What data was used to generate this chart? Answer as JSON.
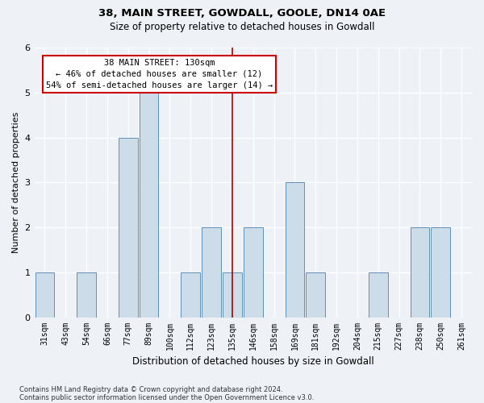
{
  "title1": "38, MAIN STREET, GOWDALL, GOOLE, DN14 0AE",
  "title2": "Size of property relative to detached houses in Gowdall",
  "xlabel": "Distribution of detached houses by size in Gowdall",
  "ylabel": "Number of detached properties",
  "categories": [
    "31sqm",
    "43sqm",
    "54sqm",
    "66sqm",
    "77sqm",
    "89sqm",
    "100sqm",
    "112sqm",
    "123sqm",
    "135sqm",
    "146sqm",
    "158sqm",
    "169sqm",
    "181sqm",
    "192sqm",
    "204sqm",
    "215sqm",
    "227sqm",
    "238sqm",
    "250sqm",
    "261sqm"
  ],
  "values": [
    1,
    0,
    1,
    0,
    4,
    5,
    0,
    1,
    2,
    1,
    2,
    0,
    3,
    1,
    0,
    0,
    1,
    0,
    2,
    2,
    0
  ],
  "bar_color": "#ccdce8",
  "bar_edge_color": "#6090b8",
  "vline_x_index": 9,
  "vline_color": "#aa0000",
  "annotation_text": "38 MAIN STREET: 130sqm\n← 46% of detached houses are smaller (12)\n54% of semi-detached houses are larger (14) →",
  "annotation_box_color": "#ffffff",
  "annotation_box_edge": "#cc0000",
  "ylim": [
    0,
    6
  ],
  "yticks": [
    0,
    1,
    2,
    3,
    4,
    5,
    6
  ],
  "background_color": "#eef2f7",
  "grid_color": "#ffffff",
  "footer1": "Contains HM Land Registry data © Crown copyright and database right 2024.",
  "footer2": "Contains public sector information licensed under the Open Government Licence v3.0."
}
